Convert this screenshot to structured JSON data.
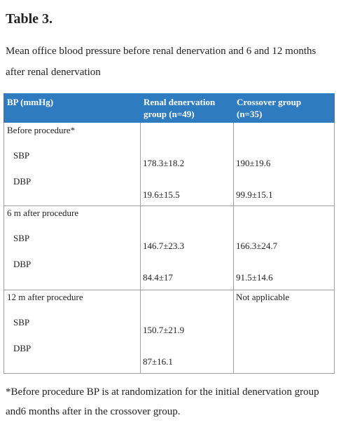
{
  "header": {
    "title": "Table 3."
  },
  "caption": "Mean office blood pressure before renal denervation and 6 and 12 months after renal denervation",
  "table": {
    "columns": [
      "BP (mmHg)",
      "Renal denervation group (n=49)",
      "Crossover group (n=35)"
    ],
    "sections": [
      {
        "label": "Before procedure*",
        "measures": [
          "SBP",
          "DBP"
        ],
        "renal": [
          "178.3±18.2",
          "19.6±15.5"
        ],
        "crossover": [
          "190±19.6",
          "99.9±15.1"
        ]
      },
      {
        "label": "6 m after procedure",
        "measures": [
          "SBP",
          "DBP"
        ],
        "renal": [
          "146.7±23.3",
          "84.4±17"
        ],
        "crossover": [
          "166.3±24.7",
          "91.5±14.6"
        ]
      },
      {
        "label": "12 m after procedure",
        "measures": [
          "SBP",
          "DBP"
        ],
        "renal": [
          "150.7±21.9",
          "87±16.1"
        ],
        "crossover": "Not applicable"
      }
    ]
  },
  "note": "*Before procedure BP is at randomization for the initial denervation group and6 months after in the crossover group."
}
